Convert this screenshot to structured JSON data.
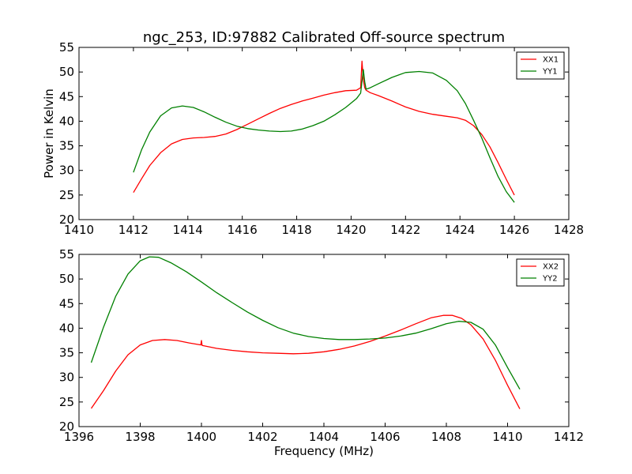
{
  "figure": {
    "title": "ngc_253, ID:97882 Calibrated Off-source spectrum"
  },
  "chart_data": [
    {
      "type": "line",
      "title": "ngc_253, ID:97882 Calibrated Off-source spectrum",
      "xlabel": "",
      "ylabel": "Power in Kelvin",
      "xlim": [
        1410,
        1428
      ],
      "ylim": [
        20,
        55
      ],
      "xticks": [
        1410,
        1412,
        1414,
        1416,
        1418,
        1420,
        1422,
        1424,
        1426,
        1428
      ],
      "yticks": [
        20,
        25,
        30,
        35,
        40,
        45,
        50,
        55
      ],
      "grid": false,
      "legend": "top-right",
      "series": [
        {
          "name": "XX1",
          "color": "#ff0000",
          "x": [
            1412.0,
            1412.3,
            1412.6,
            1413.0,
            1413.4,
            1413.8,
            1414.2,
            1414.6,
            1415.0,
            1415.4,
            1415.8,
            1416.2,
            1416.6,
            1417.0,
            1417.4,
            1417.8,
            1418.2,
            1418.6,
            1419.0,
            1419.4,
            1419.8,
            1420.2,
            1420.35,
            1420.4,
            1420.45,
            1420.5,
            1420.55,
            1420.7,
            1421.0,
            1421.5,
            1422.0,
            1422.5,
            1423.0,
            1423.5,
            1423.9,
            1424.2,
            1424.5,
            1424.8,
            1425.1,
            1425.4,
            1425.7,
            1426.0
          ],
          "values": [
            25.5,
            28.3,
            31.0,
            33.6,
            35.4,
            36.3,
            36.6,
            36.7,
            36.9,
            37.4,
            38.3,
            39.4,
            40.5,
            41.6,
            42.6,
            43.4,
            44.1,
            44.7,
            45.3,
            45.8,
            46.2,
            46.3,
            46.8,
            52.2,
            48.5,
            46.8,
            46.3,
            45.8,
            45.2,
            44.1,
            42.9,
            42.0,
            41.4,
            41.0,
            40.7,
            40.2,
            39.1,
            37.3,
            34.8,
            31.6,
            28.2,
            25.0
          ]
        },
        {
          "name": "YY1",
          "color": "#008000",
          "x": [
            1412.0,
            1412.3,
            1412.6,
            1413.0,
            1413.4,
            1413.8,
            1414.2,
            1414.6,
            1415.0,
            1415.4,
            1415.8,
            1416.2,
            1416.6,
            1417.0,
            1417.4,
            1417.8,
            1418.2,
            1418.6,
            1419.0,
            1419.4,
            1419.8,
            1420.2,
            1420.35,
            1420.45,
            1420.5,
            1420.55,
            1420.7,
            1421.0,
            1421.5,
            1422.0,
            1422.5,
            1423.0,
            1423.5,
            1423.9,
            1424.2,
            1424.5,
            1424.8,
            1425.1,
            1425.4,
            1425.7,
            1426.0
          ],
          "values": [
            29.6,
            34.2,
            37.8,
            41.1,
            42.7,
            43.1,
            42.8,
            41.9,
            40.8,
            39.8,
            39.0,
            38.5,
            38.2,
            38.0,
            37.9,
            38.0,
            38.4,
            39.1,
            40.0,
            41.3,
            42.8,
            44.6,
            45.7,
            50.5,
            48.0,
            46.5,
            46.8,
            47.6,
            48.9,
            49.9,
            50.1,
            49.8,
            48.3,
            46.2,
            43.6,
            40.2,
            36.6,
            32.6,
            28.8,
            25.7,
            23.5
          ]
        }
      ]
    },
    {
      "type": "line",
      "title": "",
      "xlabel": "Frequency (MHz)",
      "ylabel": "",
      "xlim": [
        1396,
        1412
      ],
      "ylim": [
        20,
        55
      ],
      "xticks": [
        1396,
        1398,
        1400,
        1402,
        1404,
        1406,
        1408,
        1410,
        1412
      ],
      "yticks": [
        20,
        25,
        30,
        35,
        40,
        45,
        50,
        55
      ],
      "grid": false,
      "legend": "top-right",
      "series": [
        {
          "name": "XX2",
          "color": "#ff0000",
          "x": [
            1396.4,
            1396.8,
            1397.2,
            1397.6,
            1398.0,
            1398.4,
            1398.8,
            1399.2,
            1399.6,
            1399.98,
            1400.0,
            1400.02,
            1400.5,
            1401.0,
            1401.5,
            1402.0,
            1402.5,
            1403.0,
            1403.5,
            1404.0,
            1404.5,
            1405.0,
            1405.5,
            1406.0,
            1406.5,
            1407.0,
            1407.5,
            1407.9,
            1408.2,
            1408.5,
            1408.8,
            1409.2,
            1409.6,
            1410.0,
            1410.4
          ],
          "values": [
            23.7,
            27.3,
            31.3,
            34.6,
            36.6,
            37.5,
            37.7,
            37.5,
            37.0,
            36.6,
            37.5,
            36.5,
            35.9,
            35.5,
            35.2,
            35.0,
            34.9,
            34.8,
            34.9,
            35.2,
            35.7,
            36.4,
            37.3,
            38.4,
            39.6,
            40.9,
            42.1,
            42.6,
            42.6,
            42.0,
            40.7,
            37.8,
            33.5,
            28.4,
            23.6
          ]
        },
        {
          "name": "YY2",
          "color": "#008000",
          "x": [
            1396.4,
            1396.8,
            1397.2,
            1397.6,
            1398.0,
            1398.3,
            1398.6,
            1399.0,
            1399.5,
            1400.0,
            1400.5,
            1401.0,
            1401.5,
            1402.0,
            1402.5,
            1403.0,
            1403.5,
            1404.0,
            1404.5,
            1405.0,
            1405.5,
            1406.0,
            1406.5,
            1407.0,
            1407.5,
            1408.0,
            1408.4,
            1408.8,
            1409.2,
            1409.6,
            1410.0,
            1410.4
          ],
          "values": [
            33.0,
            40.2,
            46.5,
            51.0,
            53.7,
            54.5,
            54.4,
            53.3,
            51.5,
            49.4,
            47.2,
            45.2,
            43.3,
            41.6,
            40.1,
            39.0,
            38.3,
            37.9,
            37.7,
            37.7,
            37.8,
            38.0,
            38.4,
            39.0,
            39.9,
            40.9,
            41.4,
            41.2,
            39.8,
            36.6,
            32.0,
            27.6
          ]
        }
      ]
    }
  ]
}
